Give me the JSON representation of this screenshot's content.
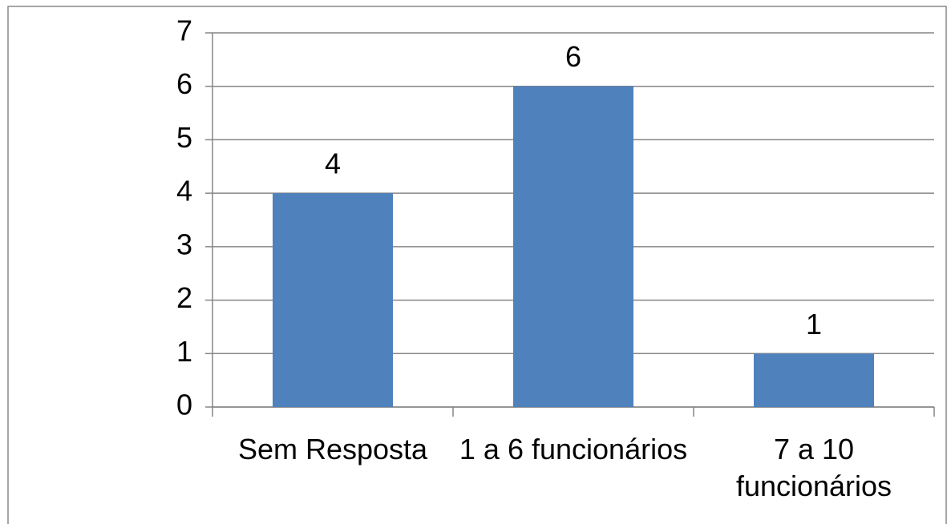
{
  "chart_data": {
    "type": "bar",
    "categories": [
      "Sem Resposta",
      "1 a 6 funcionários",
      "7 a 10 funcionários"
    ],
    "values": [
      4,
      6,
      1
    ],
    "color": "#4f81bd",
    "ylim": [
      0,
      7
    ],
    "yticks": [
      0,
      1,
      2,
      3,
      4,
      5,
      6,
      7
    ],
    "grid": true
  }
}
